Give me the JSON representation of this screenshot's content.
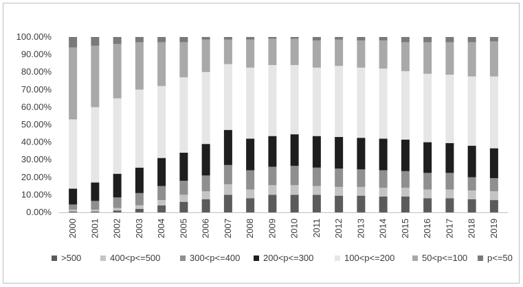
{
  "chart_data": {
    "type": "bar",
    "stacked": true,
    "percent": true,
    "title": "",
    "xlabel": "",
    "ylabel": "",
    "ylim": [
      0,
      100
    ],
    "yticks": [
      "0.00%",
      "10.00%",
      "20.00%",
      "30.00%",
      "40.00%",
      "50.00%",
      "60.00%",
      "70.00%",
      "80.00%",
      "90.00%",
      "100.00%"
    ],
    "grid": false,
    "legend_position": "bottom",
    "categories": [
      "2000",
      "2001",
      "2002",
      "2003",
      "2004",
      "2005",
      "2006",
      "2007",
      "2008",
      "2009",
      "2010",
      "2011",
      "2012",
      "2013",
      "2014",
      "2015",
      "2016",
      "2017",
      "2018",
      "2019"
    ],
    "series": [
      {
        "name": ">500",
        "color": "#5b5b5b",
        "values": [
          0.5,
          0.5,
          1,
          2,
          4,
          6,
          7.5,
          10,
          8,
          10,
          10,
          10,
          9.5,
          9.5,
          9,
          9,
          8,
          8,
          7.5,
          7
        ]
      },
      {
        "name": "400<p<=500",
        "color": "#c4c4c4",
        "values": [
          1,
          1,
          1.5,
          2,
          3,
          4,
          4.5,
          6,
          5,
          5.5,
          5.5,
          5,
          5,
          5,
          5,
          5,
          5,
          5,
          5,
          5
        ]
      },
      {
        "name": "300<p<=400",
        "color": "#8f8f8f",
        "values": [
          3,
          5,
          6,
          7,
          8,
          8,
          9,
          11,
          11,
          10.5,
          11,
          10.5,
          10.5,
          10,
          10,
          9.5,
          9.5,
          9.5,
          7.5,
          7.5
        ]
      },
      {
        "name": "200<p<=300",
        "color": "#1e1e1e",
        "values": [
          9,
          10.5,
          13.5,
          14.5,
          16,
          16,
          18,
          20,
          18,
          17.5,
          18,
          18,
          18,
          18,
          18,
          18,
          17.5,
          17,
          18,
          17
        ]
      },
      {
        "name": "100<p<=200",
        "color": "#e6e6e6",
        "values": [
          39.5,
          43,
          43,
          44.5,
          41,
          43,
          41,
          37.5,
          40.5,
          40.5,
          39.5,
          39,
          40.5,
          40,
          40,
          39,
          39,
          39,
          39.5,
          41
        ]
      },
      {
        "name": "50<p<=100",
        "color": "#a9a9a9",
        "values": [
          41,
          35,
          31,
          27,
          25,
          20,
          18.5,
          14,
          16,
          15,
          15,
          15.5,
          15,
          15.5,
          16,
          16.5,
          18,
          18.5,
          19.5,
          20
        ]
      },
      {
        "name": "p<=50",
        "color": "#7a7a7a",
        "values": [
          6,
          5,
          4,
          3,
          3,
          3,
          1.5,
          1.5,
          1.5,
          1,
          1,
          2,
          1.5,
          2,
          2,
          3,
          3,
          3,
          3,
          2.5
        ]
      }
    ]
  }
}
